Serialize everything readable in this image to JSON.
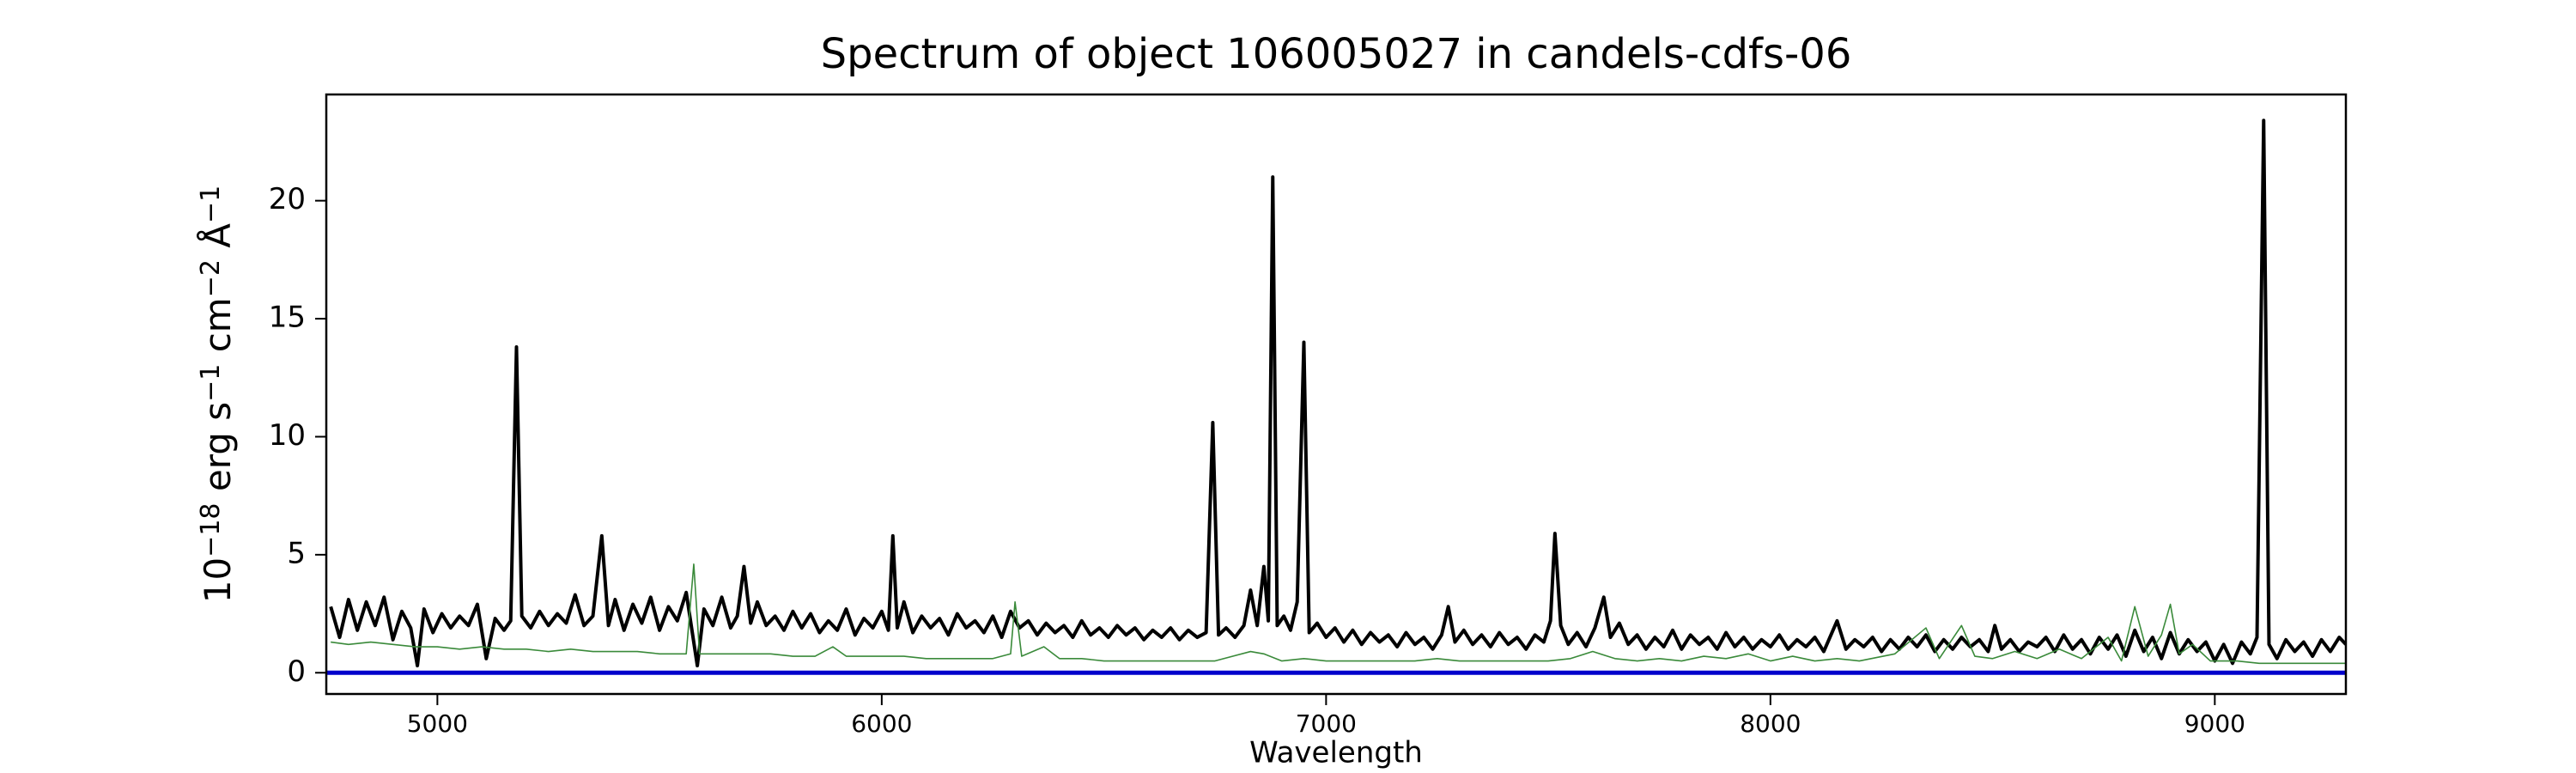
{
  "chart_data": {
    "type": "line",
    "title": "Spectrum of object 106005027 in candels-cdfs-06",
    "xlabel": "Wavelength",
    "ylabel_parts": [
      {
        "text": "10"
      },
      {
        "text": "−18",
        "sup": true
      },
      {
        "text": " erg s"
      },
      {
        "text": "−1",
        "sup": true
      },
      {
        "text": " cm"
      },
      {
        "text": "−2",
        "sup": true
      },
      {
        "text": " Å"
      },
      {
        "text": "−1",
        "sup": true
      }
    ],
    "xlim": [
      4750,
      9295
    ],
    "ylim": [
      -0.9,
      24.5
    ],
    "xticks": [
      5000,
      6000,
      7000,
      8000,
      9000
    ],
    "yticks": [
      0,
      5,
      10,
      15,
      20
    ],
    "grid": false,
    "zero_line": {
      "value": 0,
      "color": "#0000cc"
    },
    "series": [
      {
        "color": "#000000",
        "width": 4,
        "x": [
          4760,
          4780,
          4800,
          4820,
          4840,
          4860,
          4880,
          4900,
          4920,
          4940,
          4955,
          4970,
          4990,
          5010,
          5030,
          5050,
          5070,
          5090,
          5110,
          5130,
          5150,
          5165,
          5178,
          5190,
          5210,
          5230,
          5250,
          5270,
          5290,
          5310,
          5330,
          5350,
          5370,
          5385,
          5400,
          5420,
          5440,
          5460,
          5480,
          5500,
          5520,
          5540,
          5560,
          5585,
          5600,
          5620,
          5640,
          5660,
          5675,
          5690,
          5705,
          5720,
          5740,
          5760,
          5780,
          5800,
          5820,
          5840,
          5860,
          5880,
          5900,
          5920,
          5940,
          5960,
          5980,
          6000,
          6015,
          6025,
          6035,
          6050,
          6070,
          6090,
          6110,
          6130,
          6150,
          6170,
          6190,
          6210,
          6230,
          6250,
          6270,
          6290,
          6310,
          6330,
          6350,
          6370,
          6390,
          6410,
          6430,
          6450,
          6470,
          6490,
          6510,
          6530,
          6550,
          6570,
          6590,
          6610,
          6630,
          6650,
          6670,
          6690,
          6710,
          6730,
          6745,
          6758,
          6775,
          6795,
          6815,
          6830,
          6845,
          6860,
          6870,
          6880,
          6890,
          6905,
          6920,
          6935,
          6950,
          6962,
          6980,
          7000,
          7020,
          7040,
          7060,
          7080,
          7100,
          7120,
          7140,
          7160,
          7180,
          7200,
          7220,
          7240,
          7260,
          7275,
          7290,
          7310,
          7330,
          7350,
          7370,
          7390,
          7410,
          7430,
          7450,
          7470,
          7490,
          7505,
          7515,
          7528,
          7545,
          7565,
          7585,
          7605,
          7625,
          7640,
          7660,
          7680,
          7700,
          7720,
          7740,
          7760,
          7780,
          7800,
          7820,
          7840,
          7860,
          7880,
          7900,
          7920,
          7940,
          7960,
          7980,
          8000,
          8020,
          8040,
          8060,
          8080,
          8100,
          8120,
          8150,
          8170,
          8190,
          8210,
          8230,
          8250,
          8270,
          8290,
          8310,
          8330,
          8350,
          8370,
          8390,
          8410,
          8430,
          8450,
          8470,
          8490,
          8505,
          8520,
          8540,
          8560,
          8580,
          8600,
          8620,
          8640,
          8660,
          8680,
          8700,
          8720,
          8740,
          8760,
          8780,
          8800,
          8820,
          8840,
          8860,
          8880,
          8900,
          8920,
          8940,
          8960,
          8980,
          9000,
          9020,
          9040,
          9060,
          9080,
          9095,
          9110,
          9122,
          9140,
          9160,
          9180,
          9200,
          9220,
          9240,
          9260,
          9280,
          9295
        ],
        "values": [
          2.8,
          1.5,
          3.1,
          1.8,
          3.0,
          2.0,
          3.2,
          1.4,
          2.6,
          1.9,
          0.3,
          2.7,
          1.7,
          2.5,
          1.9,
          2.4,
          2.0,
          2.9,
          0.6,
          2.3,
          1.8,
          2.2,
          13.8,
          2.4,
          1.9,
          2.6,
          2.0,
          2.5,
          2.1,
          3.3,
          2.0,
          2.4,
          5.8,
          2.0,
          3.1,
          1.8,
          2.9,
          2.1,
          3.2,
          1.8,
          2.8,
          2.2,
          3.4,
          0.3,
          2.7,
          2.0,
          3.2,
          1.9,
          2.4,
          4.5,
          2.1,
          3.0,
          2.0,
          2.4,
          1.8,
          2.6,
          1.9,
          2.5,
          1.7,
          2.2,
          1.8,
          2.7,
          1.6,
          2.3,
          1.9,
          2.6,
          1.8,
          5.8,
          1.9,
          3.0,
          1.7,
          2.4,
          1.9,
          2.3,
          1.6,
          2.5,
          1.9,
          2.2,
          1.7,
          2.4,
          1.5,
          2.6,
          1.9,
          2.2,
          1.6,
          2.1,
          1.7,
          2.0,
          1.5,
          2.2,
          1.6,
          1.9,
          1.5,
          2.0,
          1.6,
          1.9,
          1.4,
          1.8,
          1.5,
          1.9,
          1.4,
          1.8,
          1.5,
          1.7,
          10.6,
          1.6,
          1.9,
          1.5,
          2.0,
          3.5,
          2.0,
          4.5,
          2.2,
          21.0,
          2.0,
          2.4,
          1.8,
          3.0,
          14.0,
          1.7,
          2.1,
          1.5,
          1.9,
          1.3,
          1.8,
          1.2,
          1.7,
          1.3,
          1.6,
          1.1,
          1.7,
          1.2,
          1.5,
          1.0,
          1.6,
          2.8,
          1.3,
          1.8,
          1.2,
          1.6,
          1.1,
          1.7,
          1.2,
          1.5,
          1.0,
          1.6,
          1.3,
          2.2,
          5.9,
          2.0,
          1.2,
          1.7,
          1.1,
          1.9,
          3.2,
          1.5,
          2.1,
          1.2,
          1.6,
          1.0,
          1.5,
          1.1,
          1.8,
          1.0,
          1.6,
          1.2,
          1.5,
          1.0,
          1.7,
          1.1,
          1.5,
          1.0,
          1.4,
          1.1,
          1.6,
          1.0,
          1.4,
          1.1,
          1.5,
          0.9,
          2.2,
          1.0,
          1.4,
          1.1,
          1.5,
          0.9,
          1.4,
          1.0,
          1.5,
          1.1,
          1.6,
          0.9,
          1.4,
          1.0,
          1.5,
          1.1,
          1.4,
          0.9,
          2.0,
          1.0,
          1.4,
          0.9,
          1.3,
          1.1,
          1.5,
          0.9,
          1.6,
          1.0,
          1.4,
          0.8,
          1.5,
          1.0,
          1.6,
          0.7,
          1.8,
          0.9,
          1.5,
          0.6,
          1.7,
          0.8,
          1.4,
          0.9,
          1.3,
          0.5,
          1.2,
          0.4,
          1.3,
          0.8,
          1.5,
          23.4,
          1.2,
          0.6,
          1.4,
          0.9,
          1.3,
          0.7,
          1.4,
          0.9,
          1.5,
          1.2
        ]
      },
      {
        "color": "#3a8a3a",
        "width": 1.6,
        "x": [
          4760,
          4800,
          4850,
          4900,
          4950,
          5000,
          5050,
          5100,
          5150,
          5200,
          5250,
          5300,
          5350,
          5400,
          5450,
          5500,
          5560,
          5577,
          5590,
          5650,
          5700,
          5750,
          5800,
          5850,
          5890,
          5920,
          5980,
          6050,
          6100,
          6150,
          6200,
          6250,
          6290,
          6300,
          6315,
          6365,
          6400,
          6450,
          6500,
          6550,
          6600,
          6650,
          6700,
          6750,
          6830,
          6860,
          6900,
          6950,
          7000,
          7050,
          7100,
          7150,
          7200,
          7250,
          7300,
          7350,
          7400,
          7450,
          7500,
          7550,
          7600,
          7650,
          7700,
          7750,
          7800,
          7850,
          7900,
          7950,
          8000,
          8050,
          8100,
          8150,
          8200,
          8280,
          8350,
          8380,
          8430,
          8460,
          8500,
          8550,
          8600,
          8650,
          8700,
          8760,
          8790,
          8820,
          8850,
          8880,
          8900,
          8920,
          8950,
          8990,
          9050,
          9100,
          9150,
          9200,
          9250,
          9295
        ],
        "values": [
          1.3,
          1.2,
          1.3,
          1.2,
          1.1,
          1.1,
          1.0,
          1.1,
          1.0,
          1.0,
          0.9,
          1.0,
          0.9,
          0.9,
          0.9,
          0.8,
          0.8,
          4.6,
          0.8,
          0.8,
          0.8,
          0.8,
          0.7,
          0.7,
          1.1,
          0.7,
          0.7,
          0.7,
          0.6,
          0.6,
          0.6,
          0.6,
          0.8,
          3.0,
          0.7,
          1.1,
          0.6,
          0.6,
          0.5,
          0.5,
          0.5,
          0.5,
          0.5,
          0.5,
          0.9,
          0.8,
          0.5,
          0.6,
          0.5,
          0.5,
          0.5,
          0.5,
          0.5,
          0.6,
          0.5,
          0.5,
          0.5,
          0.5,
          0.5,
          0.6,
          0.9,
          0.6,
          0.5,
          0.6,
          0.5,
          0.7,
          0.6,
          0.8,
          0.5,
          0.7,
          0.5,
          0.6,
          0.5,
          0.8,
          1.9,
          0.6,
          2.0,
          0.7,
          0.6,
          0.9,
          0.6,
          1.0,
          0.6,
          1.5,
          0.5,
          2.8,
          0.7,
          1.6,
          2.9,
          0.8,
          1.2,
          0.5,
          0.5,
          0.4,
          0.4,
          0.4,
          0.4,
          0.4
        ]
      }
    ]
  }
}
